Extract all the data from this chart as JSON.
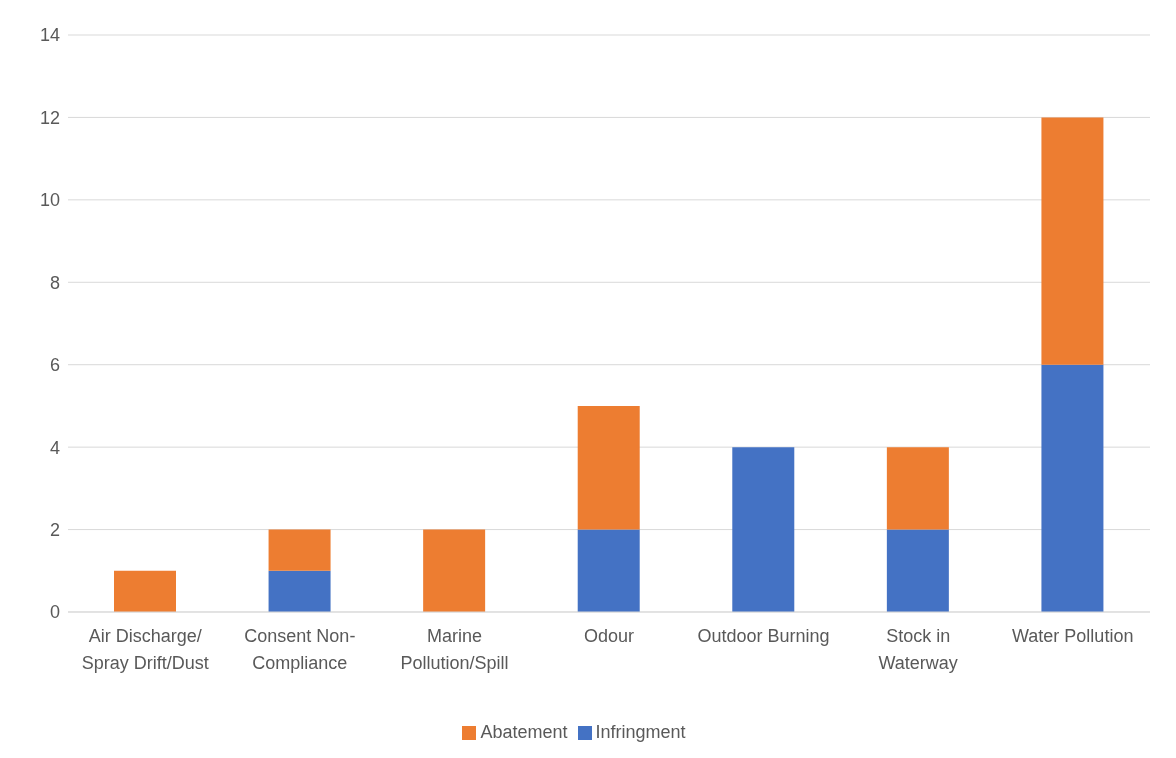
{
  "chart_data": {
    "type": "bar",
    "stacked": true,
    "categories": [
      "Air Discharge/Spray Drift/Dust",
      "Consent Non-Compliance",
      "Marine Pollution/Spill",
      "Odour",
      "Outdoor Burning",
      "Stock in Waterway",
      "Water Pollution"
    ],
    "series": [
      {
        "name": "Infringment",
        "color": "#4472c4",
        "values": [
          0,
          1,
          0,
          2,
          4,
          2,
          6
        ]
      },
      {
        "name": "Abatement",
        "color": "#ed7d31",
        "values": [
          1,
          1,
          2,
          3,
          0,
          2,
          6
        ]
      }
    ],
    "ylim": [
      0,
      14
    ],
    "yticks": [
      0,
      2,
      4,
      6,
      8,
      10,
      12,
      14
    ],
    "grid": "y",
    "legend": "bottom"
  }
}
